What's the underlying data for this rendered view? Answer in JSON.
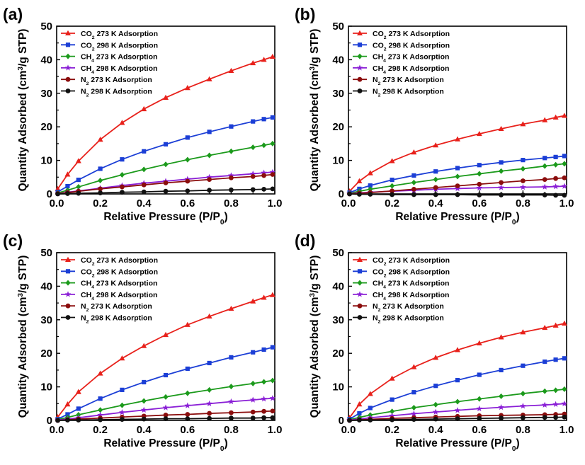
{
  "legend_labels": [
    {
      "pre": "CO",
      "sub": "2",
      "post": " 273 K Adsorption"
    },
    {
      "pre": "CO",
      "sub": "2",
      "post": " 298 K Adsorption"
    },
    {
      "pre": "CH",
      "sub": "4",
      "post": " 273 K Adsorption"
    },
    {
      "pre": "CH",
      "sub": "4",
      "post": " 298 K Adsorption"
    },
    {
      "pre": "N",
      "sub": "2",
      "post": "    273 K Adsorption"
    },
    {
      "pre": "N",
      "sub": "2",
      "post": "    298 K Adsorption"
    }
  ],
  "chart_data": [
    {
      "type": "line",
      "panel_label": "(a)",
      "xlabel": "Relative Pressure (P/P0)",
      "ylabel": "Quantity Adsorbed (cm3/g STP)",
      "xlim": [
        0,
        1.0
      ],
      "ylim": [
        0,
        50
      ],
      "xticks": [
        "0.0",
        "0.2",
        "0.4",
        "0.6",
        "0.8",
        "1.0"
      ],
      "yticks": [
        "0",
        "10",
        "20",
        "30",
        "40",
        "50"
      ],
      "grid": false,
      "legend_position": "top-left",
      "x": [
        0.005,
        0.05,
        0.1,
        0.2,
        0.3,
        0.4,
        0.5,
        0.6,
        0.7,
        0.8,
        0.9,
        0.95,
        0.99
      ],
      "series": [
        {
          "name": "CO2 273 K Adsorption",
          "color": "#e8211b",
          "marker": "triangle",
          "values": [
            1.5,
            5.8,
            9.8,
            16.2,
            21.2,
            25.3,
            28.7,
            31.6,
            34.2,
            36.7,
            39.0,
            40.0,
            40.9
          ]
        },
        {
          "name": "CO2 298 K Adsorption",
          "color": "#1c3fd6",
          "marker": "square",
          "values": [
            0.6,
            2.3,
            4.2,
            7.5,
            10.3,
            12.7,
            14.8,
            16.8,
            18.5,
            20.1,
            21.6,
            22.3,
            22.8
          ]
        },
        {
          "name": "CH4 273 K Adsorption",
          "color": "#1b9a1b",
          "marker": "diamond",
          "values": [
            0.3,
            1.1,
            2.1,
            4.0,
            5.7,
            7.3,
            8.8,
            10.2,
            11.5,
            12.7,
            13.9,
            14.5,
            15.0
          ]
        },
        {
          "name": "CH4 298 K Adsorption",
          "color": "#8a1fd6",
          "marker": "star",
          "values": [
            0.1,
            0.5,
            0.9,
            1.7,
            2.5,
            3.2,
            3.8,
            4.4,
            5.0,
            5.5,
            6.0,
            6.3,
            6.5
          ]
        },
        {
          "name": "N2 273 K Adsorption",
          "color": "#8b0d0d",
          "marker": "circle",
          "values": [
            0.1,
            0.4,
            0.8,
            1.5,
            2.1,
            2.7,
            3.3,
            3.8,
            4.3,
            4.8,
            5.2,
            5.5,
            5.8
          ]
        },
        {
          "name": "N2 298 K Adsorption",
          "color": "#111111",
          "marker": "circle",
          "values": [
            0.0,
            0.1,
            0.2,
            0.3,
            0.5,
            0.6,
            0.8,
            0.9,
            1.1,
            1.2,
            1.3,
            1.4,
            1.5
          ]
        }
      ]
    },
    {
      "type": "line",
      "panel_label": "(b)",
      "xlabel": "Relative Pressure (P/P0)",
      "ylabel": "Quantity Adsorbed (cm3/g STP)",
      "xlim": [
        0,
        1.0
      ],
      "ylim": [
        0,
        50
      ],
      "xticks": [
        "0.0",
        "0.2",
        "0.4",
        "0.6",
        "0.8",
        "1.0"
      ],
      "yticks": [
        "0",
        "10",
        "20",
        "30",
        "40",
        "50"
      ],
      "grid": false,
      "legend_position": "top-left",
      "x": [
        0.005,
        0.05,
        0.1,
        0.2,
        0.3,
        0.4,
        0.5,
        0.6,
        0.7,
        0.8,
        0.9,
        0.95,
        0.99
      ],
      "series": [
        {
          "name": "CO2 273 K Adsorption",
          "color": "#e8211b",
          "marker": "triangle",
          "values": [
            0.8,
            3.8,
            6.2,
            9.8,
            12.4,
            14.5,
            16.3,
            17.9,
            19.4,
            20.8,
            22.0,
            22.8,
            23.3
          ]
        },
        {
          "name": "CO2 298 K Adsorption",
          "color": "#1c3fd6",
          "marker": "square",
          "values": [
            0.4,
            1.5,
            2.5,
            4.2,
            5.5,
            6.7,
            7.7,
            8.6,
            9.4,
            10.1,
            10.7,
            11.0,
            11.3
          ]
        },
        {
          "name": "CH4 273 K Adsorption",
          "color": "#1b9a1b",
          "marker": "diamond",
          "values": [
            0.2,
            0.8,
            1.4,
            2.4,
            3.4,
            4.3,
            5.2,
            6.0,
            6.8,
            7.5,
            8.3,
            8.7,
            9.0
          ]
        },
        {
          "name": "CH4 298 K Adsorption",
          "color": "#8a1fd6",
          "marker": "star",
          "values": [
            0.1,
            0.3,
            0.5,
            0.8,
            1.1,
            1.4,
            1.6,
            1.8,
            1.9,
            2.0,
            2.1,
            2.2,
            2.3
          ]
        },
        {
          "name": "N2 273 K Adsorption",
          "color": "#8b0d0d",
          "marker": "circle",
          "values": [
            0.0,
            0.2,
            0.4,
            0.9,
            1.4,
            1.9,
            2.4,
            2.9,
            3.4,
            3.9,
            4.3,
            4.6,
            4.8
          ]
        },
        {
          "name": "N2 298 K Adsorption",
          "color": "#111111",
          "marker": "circle",
          "values": [
            0.0,
            -0.1,
            -0.1,
            -0.2,
            -0.2,
            -0.2,
            -0.2,
            -0.3,
            -0.3,
            -0.3,
            -0.3,
            -0.4,
            -0.4
          ]
        }
      ]
    },
    {
      "type": "line",
      "panel_label": "(c)",
      "xlabel": "Relative Pressure (P/P0)",
      "ylabel": "Quantity Adsorbed (cm3/g STP)",
      "xlim": [
        0,
        1.0
      ],
      "ylim": [
        0,
        50
      ],
      "xticks": [
        "0.0",
        "0.2",
        "0.4",
        "0.6",
        "0.8",
        "1.0"
      ],
      "yticks": [
        "0",
        "10",
        "20",
        "30",
        "40",
        "50"
      ],
      "grid": false,
      "legend_position": "top-left",
      "x": [
        0.005,
        0.05,
        0.1,
        0.2,
        0.3,
        0.4,
        0.5,
        0.6,
        0.7,
        0.8,
        0.9,
        0.95,
        0.99
      ],
      "series": [
        {
          "name": "CO2 273 K Adsorption",
          "color": "#e8211b",
          "marker": "triangle",
          "values": [
            1.0,
            4.8,
            8.5,
            14.0,
            18.5,
            22.2,
            25.5,
            28.5,
            31.0,
            33.3,
            35.5,
            36.6,
            37.4
          ]
        },
        {
          "name": "CO2 298 K Adsorption",
          "color": "#1c3fd6",
          "marker": "square",
          "values": [
            0.4,
            1.8,
            3.5,
            6.5,
            9.1,
            11.4,
            13.5,
            15.4,
            17.1,
            18.8,
            20.3,
            21.1,
            21.8
          ]
        },
        {
          "name": "CH4 273 K Adsorption",
          "color": "#1b9a1b",
          "marker": "diamond",
          "values": [
            0.2,
            0.9,
            1.7,
            3.1,
            4.5,
            5.8,
            7.0,
            8.1,
            9.1,
            10.1,
            11.0,
            11.5,
            11.9
          ]
        },
        {
          "name": "CH4 298 K Adsorption",
          "color": "#8a1fd6",
          "marker": "star",
          "values": [
            0.1,
            0.4,
            0.8,
            1.6,
            2.4,
            3.1,
            3.8,
            4.4,
            5.0,
            5.6,
            6.1,
            6.4,
            6.6
          ]
        },
        {
          "name": "N2 273 K Adsorption",
          "color": "#8b0d0d",
          "marker": "circle",
          "values": [
            0.0,
            0.2,
            0.4,
            0.7,
            1.0,
            1.3,
            1.6,
            1.8,
            2.1,
            2.3,
            2.5,
            2.7,
            2.8
          ]
        },
        {
          "name": "N2 298 K Adsorption",
          "color": "#111111",
          "marker": "circle",
          "values": [
            0.0,
            0.1,
            0.1,
            0.2,
            0.3,
            0.4,
            0.5,
            0.5,
            0.6,
            0.7,
            0.7,
            0.8,
            0.8
          ]
        }
      ]
    },
    {
      "type": "line",
      "panel_label": "(d)",
      "xlabel": "Relative Pressure (P/P0)",
      "ylabel": "Quantity Adsorbed (cm3/g STP)",
      "xlim": [
        0,
        1.0
      ],
      "ylim": [
        0,
        50
      ],
      "xticks": [
        "0.0",
        "0.2",
        "0.4",
        "0.6",
        "0.8",
        "1.0"
      ],
      "yticks": [
        "0",
        "10",
        "20",
        "30",
        "40",
        "50"
      ],
      "grid": false,
      "legend_position": "top-left",
      "x": [
        0.005,
        0.05,
        0.1,
        0.2,
        0.3,
        0.4,
        0.5,
        0.6,
        0.7,
        0.8,
        0.9,
        0.95,
        0.99
      ],
      "series": [
        {
          "name": "CO2 273 K Adsorption",
          "color": "#e8211b",
          "marker": "triangle",
          "values": [
            0.8,
            4.8,
            7.9,
            12.5,
            15.9,
            18.7,
            21.0,
            23.0,
            24.8,
            26.3,
            27.6,
            28.3,
            28.9
          ]
        },
        {
          "name": "CO2 298 K Adsorption",
          "color": "#1c3fd6",
          "marker": "square",
          "values": [
            0.4,
            2.1,
            3.7,
            6.2,
            8.4,
            10.3,
            12.0,
            13.6,
            15.0,
            16.3,
            17.5,
            18.1,
            18.5
          ]
        },
        {
          "name": "CH4 273 K Adsorption",
          "color": "#1b9a1b",
          "marker": "diamond",
          "values": [
            0.2,
            0.9,
            1.6,
            2.7,
            3.8,
            4.7,
            5.6,
            6.4,
            7.2,
            8.0,
            8.7,
            9.0,
            9.3
          ]
        },
        {
          "name": "CH4 298 K Adsorption",
          "color": "#8a1fd6",
          "marker": "star",
          "values": [
            0.1,
            0.4,
            0.8,
            1.4,
            2.0,
            2.5,
            3.0,
            3.5,
            3.9,
            4.3,
            4.6,
            4.8,
            5.0
          ]
        },
        {
          "name": "N2 273 K Adsorption",
          "color": "#8b0d0d",
          "marker": "circle",
          "values": [
            0.0,
            0.2,
            0.3,
            0.6,
            0.8,
            1.0,
            1.2,
            1.4,
            1.5,
            1.6,
            1.7,
            1.8,
            1.9
          ]
        },
        {
          "name": "N2 298 K Adsorption",
          "color": "#111111",
          "marker": "circle",
          "values": [
            0.0,
            0.1,
            0.1,
            0.2,
            0.3,
            0.4,
            0.5,
            0.6,
            0.7,
            0.8,
            0.9,
            0.9,
            1.0
          ]
        }
      ]
    }
  ]
}
